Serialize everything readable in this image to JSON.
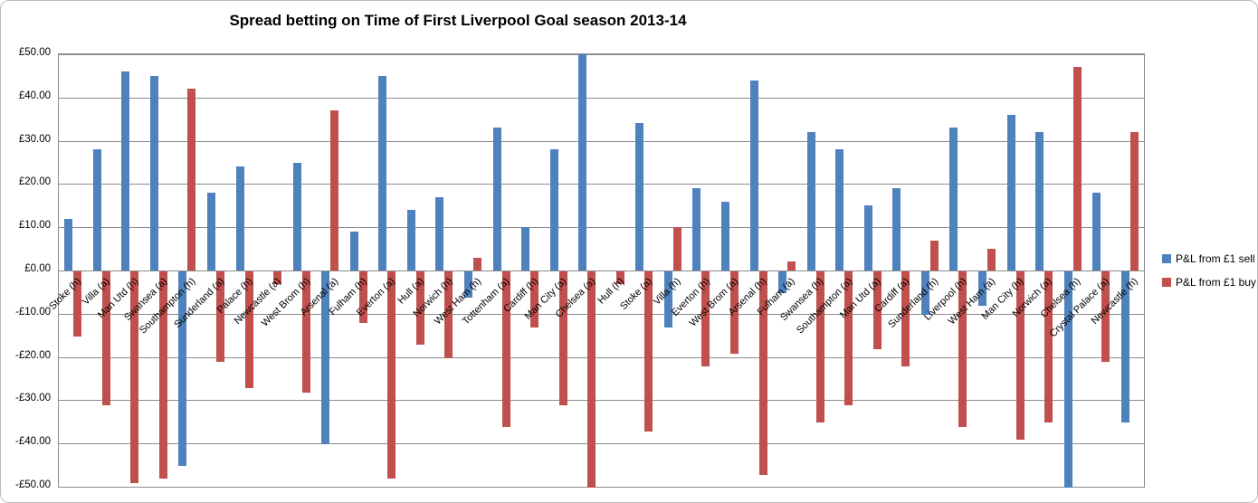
{
  "title": "Spread betting on Time of First Liverpool Goal season 2013-14",
  "legend": [
    {
      "label": "P&L from £1 sell",
      "color": "#4F81BD"
    },
    {
      "label": "P&L from £1 buy",
      "color": "#C0504D"
    }
  ],
  "chart_data": {
    "type": "bar",
    "title": "Spread betting on Time of First Liverpool Goal season 2013-14",
    "categories": [
      "Stoke (h)",
      "Villa (a)",
      "Man Utd (h)",
      "Swansea (a)",
      "Southampton (h)",
      "Sunderland (a)",
      "Palace (h)",
      "Newcastle (a)",
      "West Brom (h)",
      "Arsenal (a)",
      "Fulham (h)",
      "Everton (a)",
      "Hull (a)",
      "Norwich (h)",
      "West Ham (h)",
      "Tottenham (a)",
      "Cardiff (h)",
      "Man City (a)",
      "Chelsea (a)",
      "Hull (h)",
      "Stoke (a)",
      "Villa (h)",
      "Everton (h)",
      "West Brom (a)",
      "Arsenal (h)",
      "Fulham (a)",
      "Swansea (h)",
      "Southampton (a)",
      "Man Utd (a)",
      "Cardiff (a)",
      "Sunderland (h)",
      "Liverpool (h)",
      "West Ham (a)",
      "Man City (h)",
      "Norwich (a)",
      "Chelsea (h)",
      "Crystal Palace (a)",
      "Newcastle (h)"
    ],
    "series": [
      {
        "name": "P&L from £1 sell",
        "color": "#4F81BD",
        "values": [
          12,
          28,
          46,
          45,
          -45,
          18,
          24,
          0,
          25,
          -40,
          9,
          45,
          14,
          17,
          -6,
          33,
          10,
          28,
          50,
          0,
          34,
          -13,
          19,
          16,
          44,
          -5,
          32,
          28,
          15,
          19,
          -10,
          33,
          -8,
          36,
          32,
          -50,
          18,
          -35
        ]
      },
      {
        "name": "P&L from £1 buy",
        "color": "#C0504D",
        "values": [
          -15,
          -31,
          -49,
          -48,
          42,
          -21,
          -27,
          -3,
          -28,
          37,
          -12,
          -48,
          -17,
          -20,
          3,
          -36,
          -13,
          -31,
          -53,
          -3,
          -37,
          10,
          -22,
          -19,
          -47,
          2,
          -35,
          -31,
          -18,
          -22,
          7,
          -36,
          5,
          -39,
          -35,
          47,
          -21,
          32
        ]
      }
    ],
    "ylabel": "",
    "xlabel": "",
    "ylim": [
      -50,
      50
    ],
    "ytick_step": 10,
    "ytick_labels": [
      "£50.00",
      "£40.00",
      "£30.00",
      "£20.00",
      "£10.00",
      "£0.00",
      "-£10.00",
      "-£20.00",
      "-£30.00",
      "-£40.00",
      "-£50.00"
    ],
    "grid": true,
    "legend_position": "right",
    "currency": "£"
  }
}
